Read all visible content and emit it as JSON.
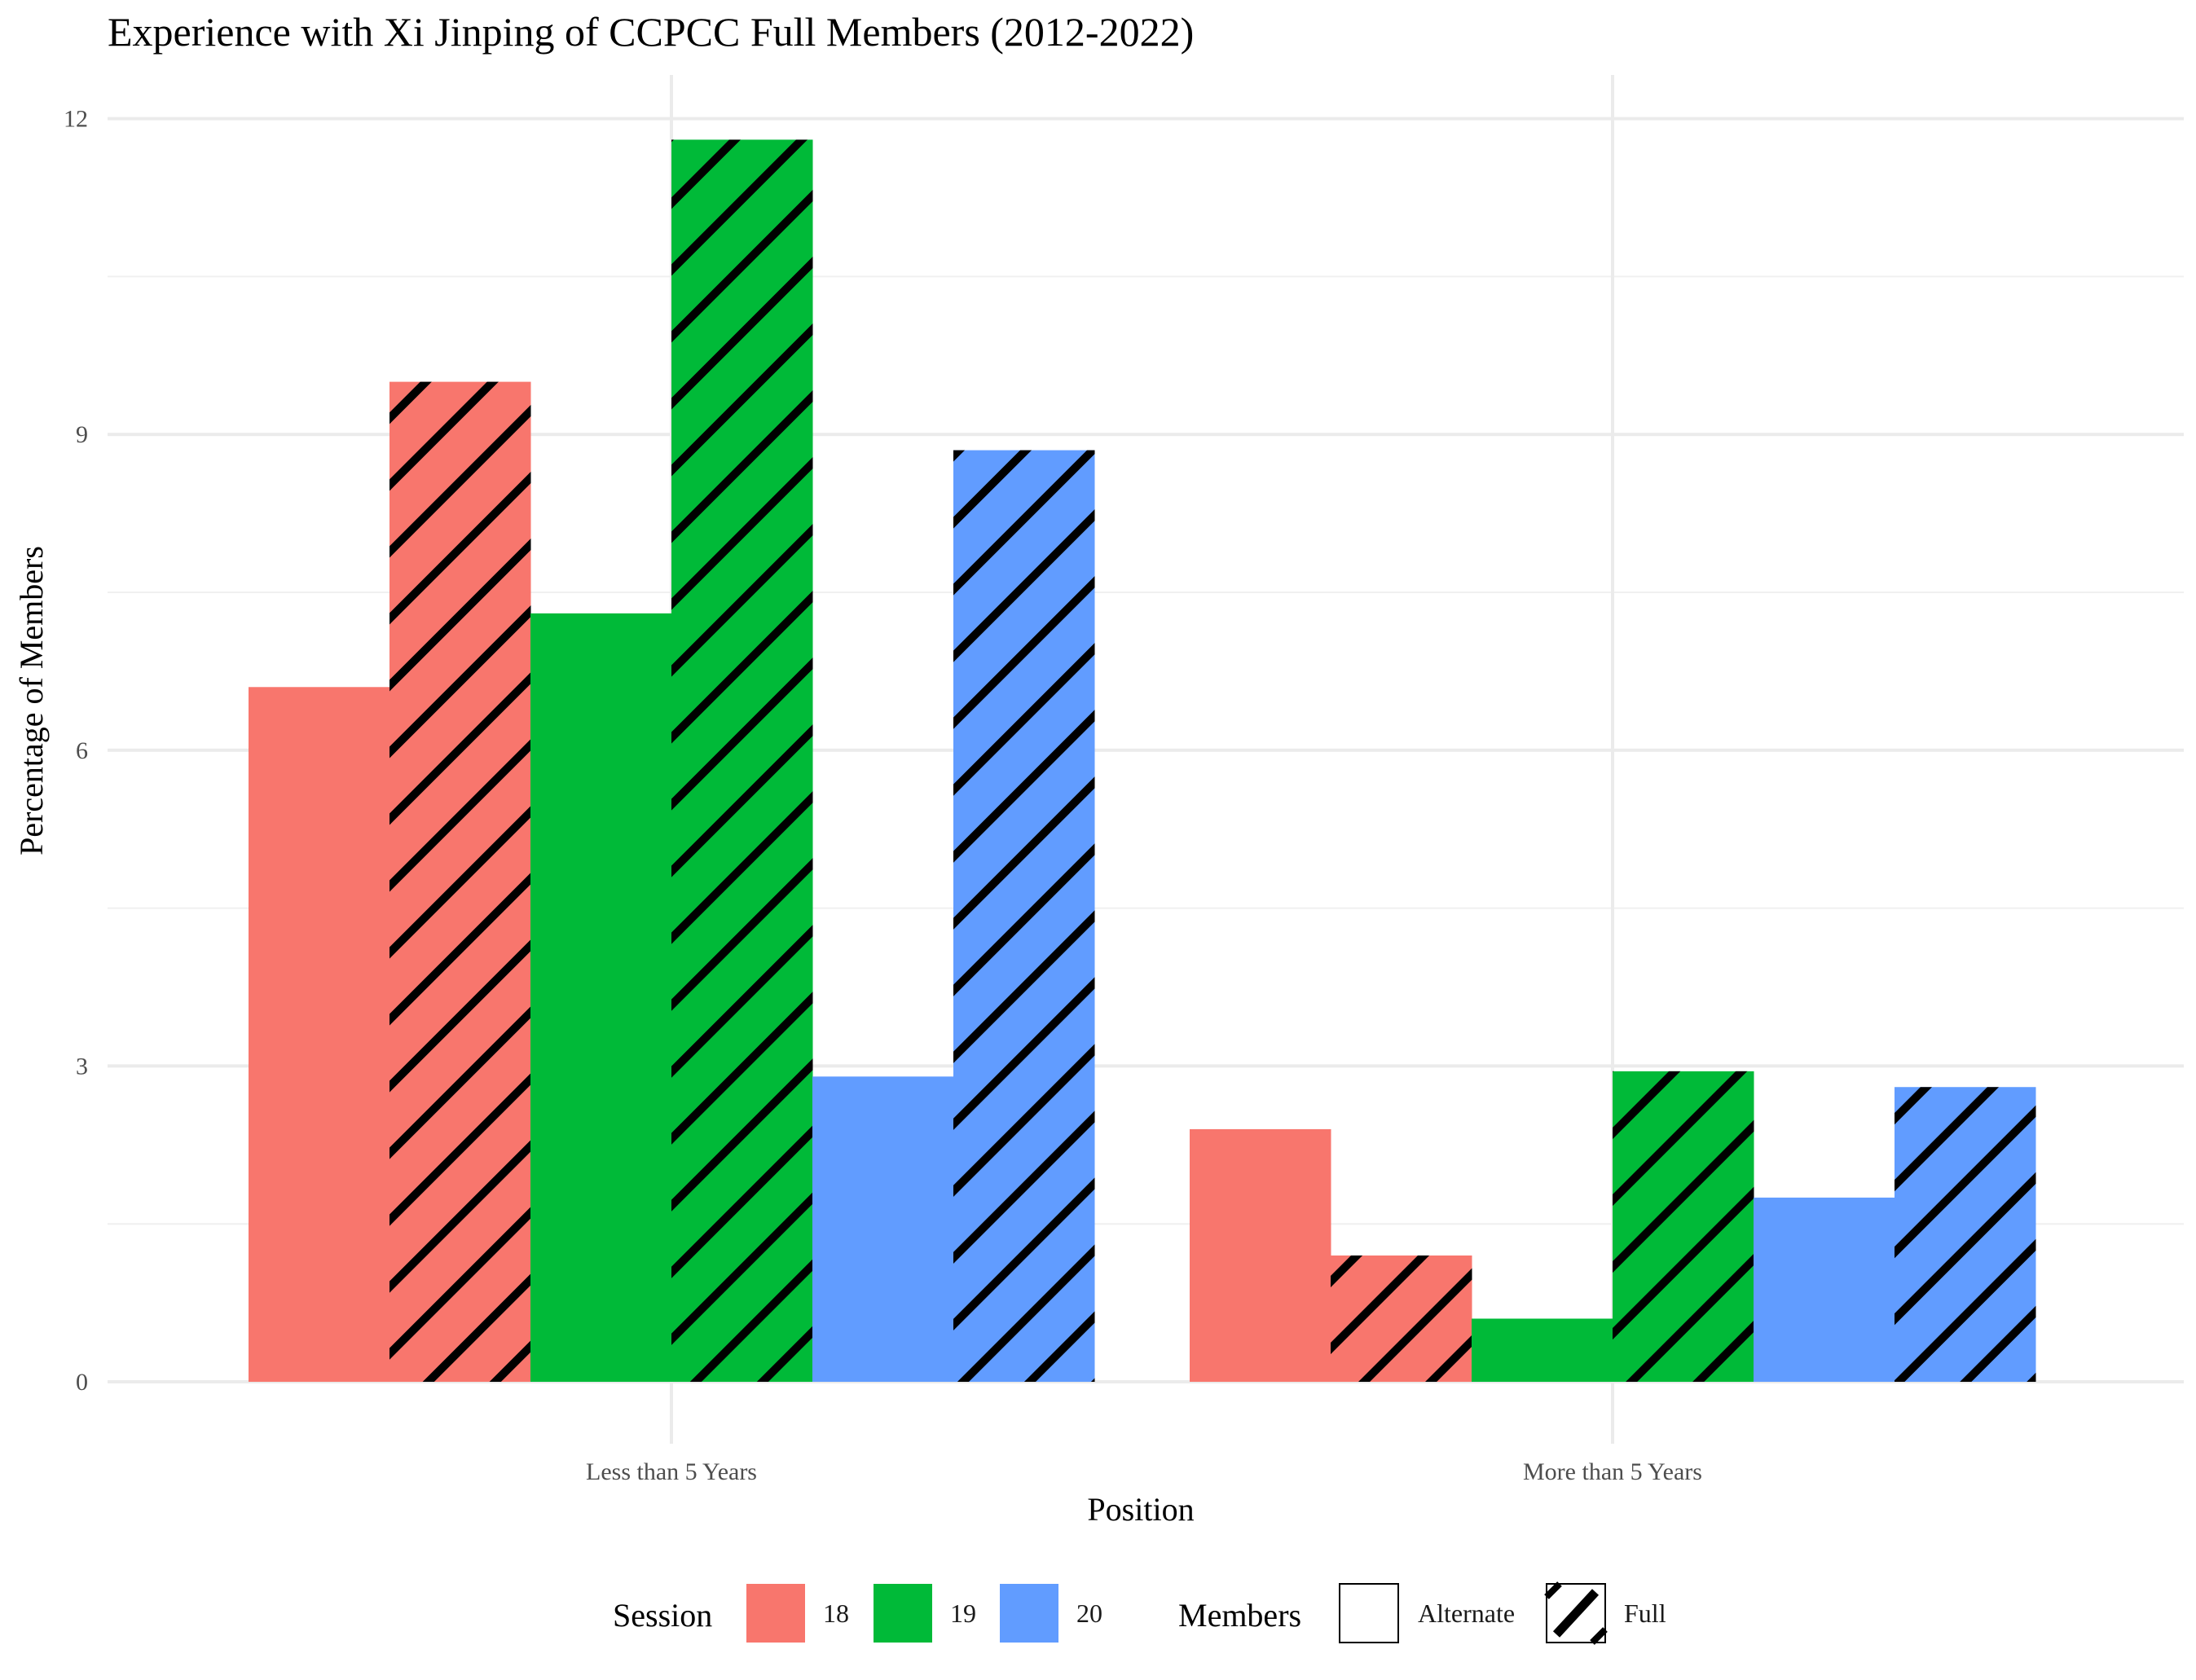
{
  "chart_data": {
    "type": "bar",
    "title": "Experience with Xi Jinping of CCPCC Full Members (2012-2022)",
    "xlabel": "Position",
    "ylabel": "Percentage of Members",
    "categories": [
      "Less than 5 Years",
      "More than 5 Years"
    ],
    "ylim": [
      0,
      12.7
    ],
    "yticks": [
      0,
      3,
      6,
      9,
      12
    ],
    "grid": true,
    "legend_position": "bottom",
    "session_legend_title": "Session",
    "members_legend_title": "Members",
    "sessions": [
      {
        "name": "18",
        "color": "#F8766D"
      },
      {
        "name": "19",
        "color": "#00BA38"
      },
      {
        "name": "20",
        "color": "#619CFF"
      }
    ],
    "members": [
      {
        "name": "Alternate",
        "pattern": "none"
      },
      {
        "name": "Full",
        "pattern": "stripe"
      }
    ],
    "series": [
      {
        "session": "18",
        "members": "Alternate",
        "values": [
          6.6,
          2.4
        ]
      },
      {
        "session": "18",
        "members": "Full",
        "values": [
          9.5,
          1.2
        ]
      },
      {
        "session": "19",
        "members": "Alternate",
        "values": [
          7.3,
          0.6
        ]
      },
      {
        "session": "19",
        "members": "Full",
        "values": [
          11.8,
          2.95
        ]
      },
      {
        "session": "20",
        "members": "Alternate",
        "values": [
          2.9,
          1.75
        ]
      },
      {
        "session": "20",
        "members": "Full",
        "values": [
          8.85,
          2.8
        ]
      }
    ]
  }
}
